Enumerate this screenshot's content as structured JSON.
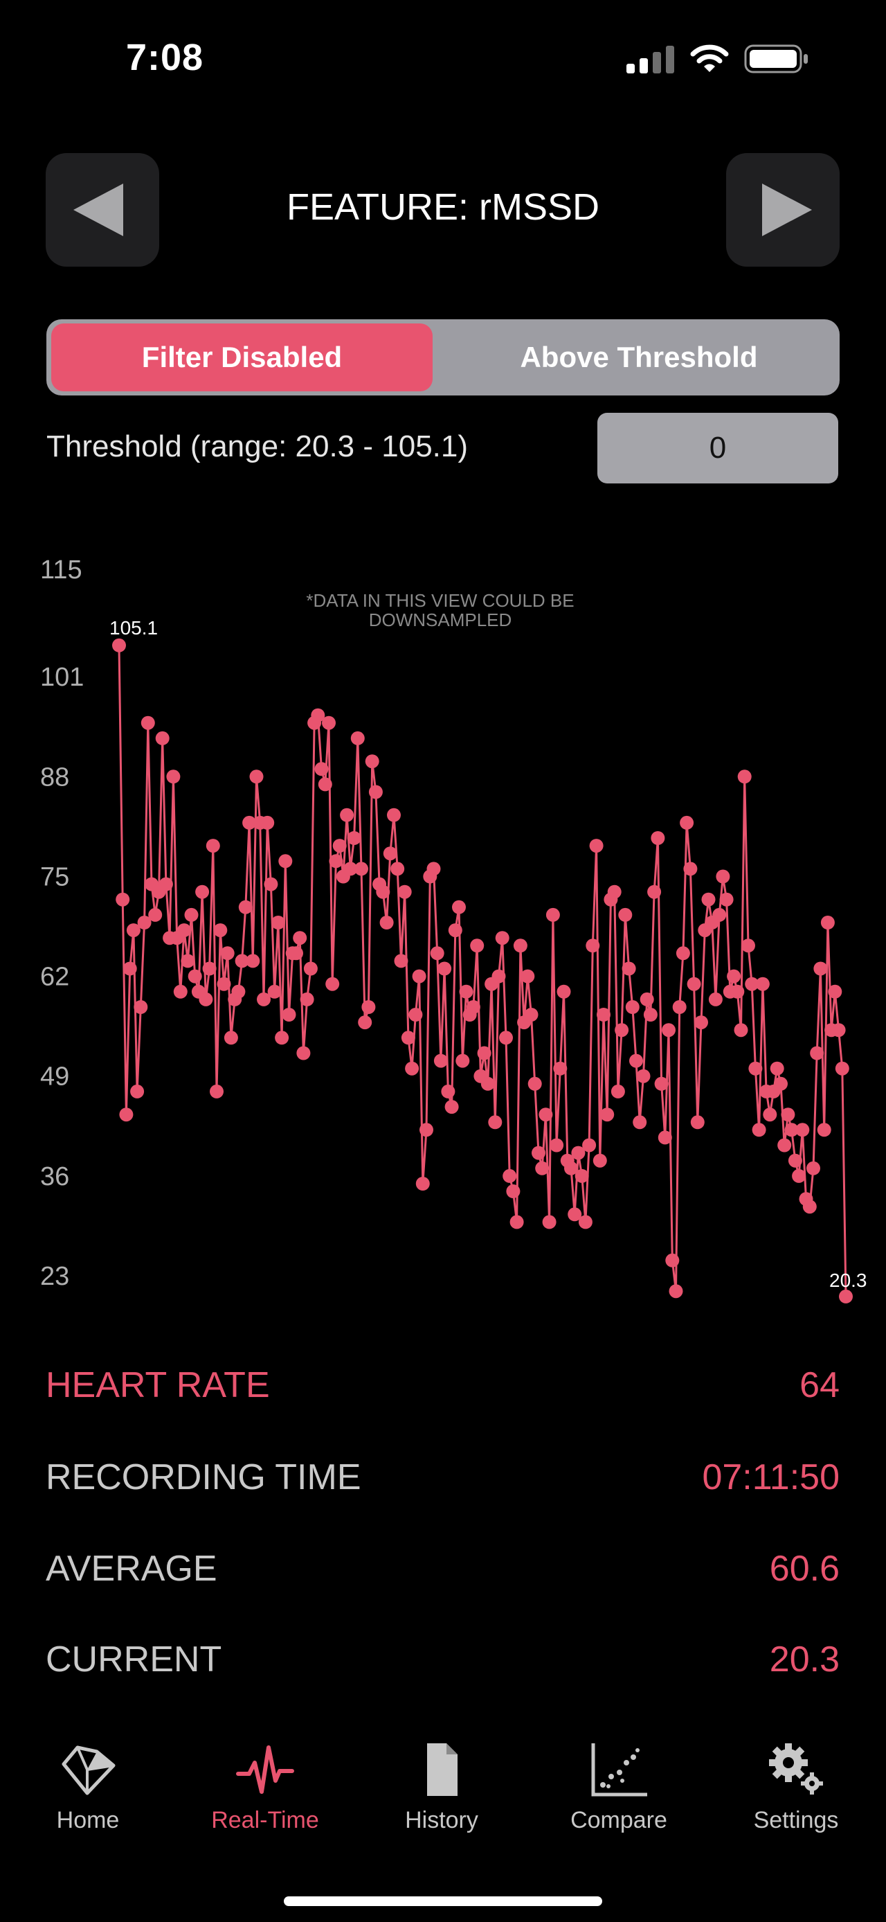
{
  "status_bar": {
    "time": "7:08"
  },
  "header": {
    "title": "FEATURE: rMSSD",
    "prev_icon": "triangle-left-icon",
    "next_icon": "triangle-right-icon"
  },
  "filter": {
    "options": [
      "Filter Disabled",
      "Above Threshold"
    ],
    "selected": "Filter Disabled",
    "threshold_label": "Threshold (range: 20.3 - 105.1)",
    "threshold_value": "0"
  },
  "chart_data": {
    "type": "line",
    "note": "*DATA IN THIS VIEW COULD BE DOWNSAMPLED",
    "y_ticks": [
      "115",
      "101",
      "88",
      "75",
      "62",
      "49",
      "36",
      "23"
    ],
    "ylim": [
      23,
      115
    ],
    "max_label": "105.1",
    "min_label": "20.3",
    "grid": false,
    "color": "#e8546f",
    "values": [
      105.1,
      72,
      44,
      63,
      68,
      47,
      58,
      69,
      95,
      74,
      70,
      73,
      93,
      74,
      67,
      88,
      67,
      60,
      68,
      64,
      70,
      62,
      60,
      73,
      59,
      63,
      79,
      47,
      68,
      61,
      65,
      54,
      59,
      60,
      64,
      71,
      82,
      64,
      88,
      82,
      59,
      82,
      74,
      60,
      69,
      54,
      77,
      57,
      65,
      65,
      67,
      52,
      59,
      63,
      95,
      96,
      89,
      87,
      95,
      61,
      77,
      79,
      75,
      83,
      76,
      80,
      93,
      76,
      56,
      58,
      90,
      86,
      74,
      73,
      69,
      78,
      83,
      76,
      64,
      73,
      54,
      50,
      57,
      62,
      35,
      42,
      75,
      76,
      65,
      51,
      63,
      47,
      45,
      68,
      71,
      51,
      60,
      57,
      58,
      66,
      49,
      52,
      48,
      61,
      43,
      62,
      67,
      54,
      36,
      34,
      30,
      66,
      56,
      62,
      57,
      48,
      39,
      37,
      44,
      30,
      70,
      40,
      50,
      60,
      38,
      37,
      31,
      39,
      36,
      30,
      40,
      66,
      79,
      38,
      57,
      44,
      72,
      73,
      47,
      55,
      70,
      63,
      58,
      51,
      43,
      49,
      59,
      57,
      73,
      80,
      48,
      41,
      55,
      25,
      21,
      58,
      65,
      82,
      76,
      61,
      43,
      56,
      68,
      72,
      69,
      59,
      70,
      75,
      72,
      60,
      62,
      60,
      55,
      88,
      66,
      61,
      50,
      42,
      61,
      47,
      44,
      47,
      50,
      48,
      40,
      44,
      42,
      38,
      36,
      42,
      33,
      32,
      37,
      52,
      63,
      42,
      69,
      55,
      60,
      55,
      50,
      20.3
    ]
  },
  "stats": {
    "heart_rate_label": "HEART RATE",
    "heart_rate_value": "64",
    "recording_time_label": "RECORDING TIME",
    "recording_time_value": "07:11:50",
    "average_label": "AVERAGE",
    "average_value": "60.6",
    "current_label": "CURRENT",
    "current_value": "20.3"
  },
  "tab_bar": {
    "active": "Real-Time",
    "home": "Home",
    "realtime": "Real-Time",
    "history": "History",
    "compare": "Compare",
    "settings": "Settings"
  }
}
